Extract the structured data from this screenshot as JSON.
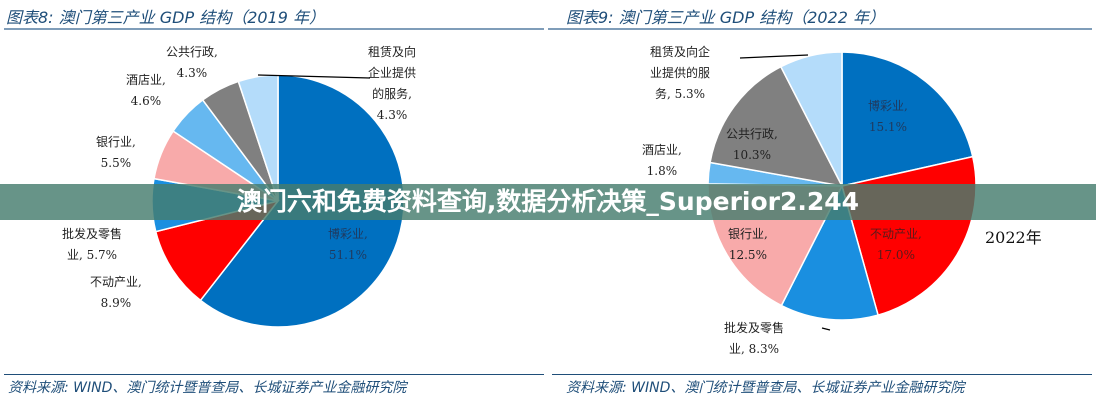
{
  "banner": "澳门六和免费资料查询,数据分析决策_Superior2.244",
  "chart_data": [
    {
      "type": "pie",
      "title": "图表8:  澳门第三产业 GDP 结构（2019 年）",
      "source": "资料来源:  WIND、澳门统计暨普查局、长城证券产业金融研究院",
      "slices": [
        {
          "name": "博彩业",
          "value": 51.1,
          "label": "博彩业,\n51.1%",
          "color": "#0070c0"
        },
        {
          "name": "不动产业",
          "value": 8.9,
          "label": "不动产业,\n8.9%",
          "color": "#ff0000"
        },
        {
          "name": "批发及零售业",
          "value": 5.7,
          "label": "批发及零售\n业, 5.7%",
          "color": "#1a8fe0"
        },
        {
          "name": "银行业",
          "value": 5.5,
          "label": "银行业,\n5.5%",
          "color": "#f8aaaa"
        },
        {
          "name": "酒店业",
          "value": 4.6,
          "label": "酒店业,\n4.6%",
          "color": "#66b8f0"
        },
        {
          "name": "公共行政",
          "value": 4.3,
          "label": "公共行政,\n4.3%",
          "color": "#808080"
        },
        {
          "name": "租赁及向企业提供的服务",
          "value": 4.3,
          "label": "租赁及向\n企业提供\n的服务,\n4.3%",
          "color": "#b4dcfa"
        }
      ]
    },
    {
      "type": "pie",
      "title": "图表9:  澳门第三产业 GDP 结构（2022 年）",
      "source": "资料来源:  WIND、澳门统计暨普查局、长城证券产业金融研究院",
      "annotation": "2022年",
      "slices": [
        {
          "name": "博彩业",
          "value": 15.1,
          "label": "博彩业,\n15.1%",
          "color": "#0070c0"
        },
        {
          "name": "不动产业",
          "value": 17.0,
          "label": "不动产业,\n17.0%",
          "color": "#ff0000"
        },
        {
          "name": "批发及零售业",
          "value": 8.3,
          "label": "批发及零售\n业, 8.3%",
          "color": "#1a8fe0"
        },
        {
          "name": "银行业",
          "value": 12.5,
          "label": "银行业,\n12.5%",
          "color": "#f8aaaa"
        },
        {
          "name": "酒店业",
          "value": 1.8,
          "label": "酒店业,\n1.8%",
          "color": "#66b8f0"
        },
        {
          "name": "公共行政",
          "value": 10.3,
          "label": "公共行政,\n10.3%",
          "color": "#808080"
        },
        {
          "name": "租赁及向企业提供的服务",
          "value": 5.3,
          "label": "租赁及向企\n业提供的服\n务, 5.3%",
          "color": "#b4dcfa"
        }
      ]
    }
  ]
}
